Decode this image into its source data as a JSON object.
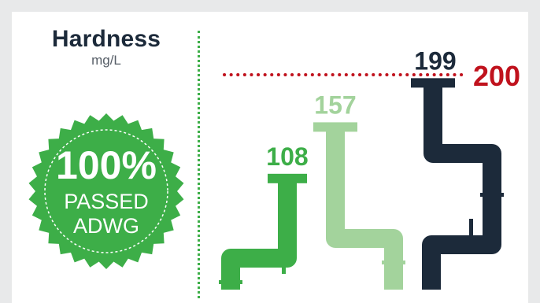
{
  "header": {
    "title": "Hardness",
    "unit": "mg/L"
  },
  "badge": {
    "percent": "100%",
    "line1": "PASSED",
    "line2": "ADWG",
    "color": "#3dae48"
  },
  "colors": {
    "series": [
      "#3dae48",
      "#a3d39c",
      "#1c2a3a"
    ],
    "threshold": "#c0121d",
    "background": "#e8e9ea",
    "card": "#ffffff"
  },
  "chart_data": {
    "type": "bar",
    "title": "Hardness",
    "ylabel": "mg/L",
    "values": [
      108,
      157,
      199
    ],
    "value_labels": [
      "108",
      "157",
      "199"
    ],
    "threshold": {
      "value": 200,
      "label": "200"
    },
    "ylim": [
      0,
      200
    ],
    "legend": "none",
    "grid": false
  }
}
